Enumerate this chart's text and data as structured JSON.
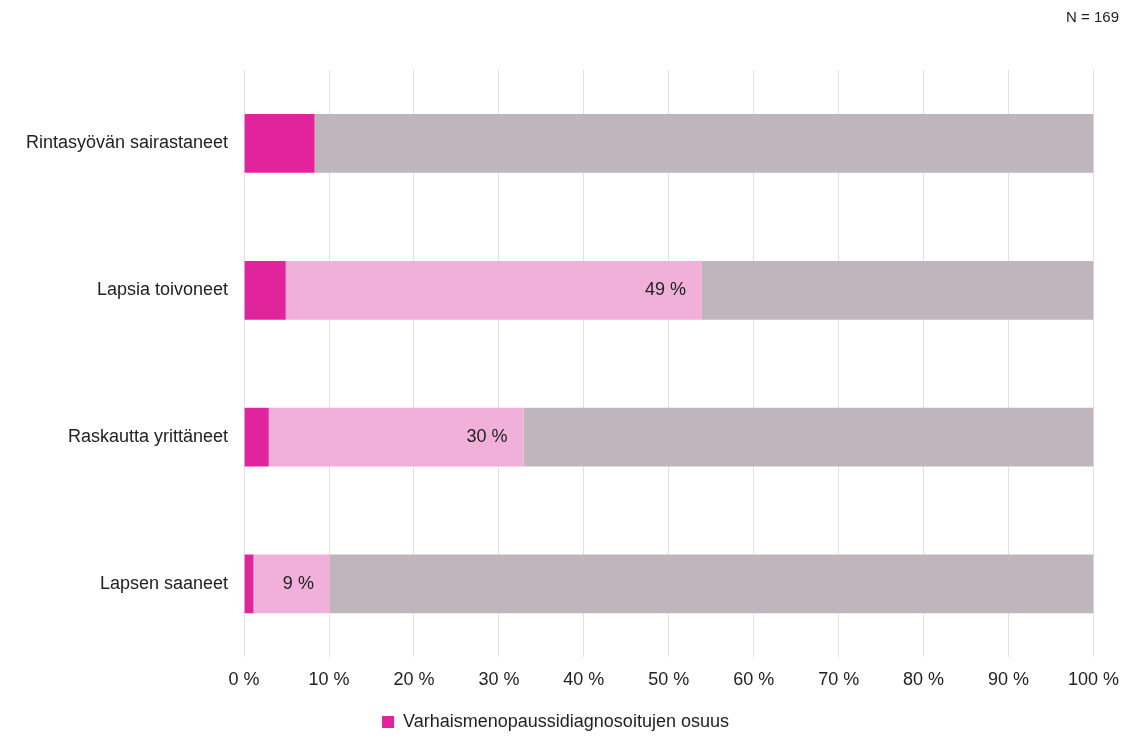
{
  "chart_data": {
    "type": "bar",
    "orientation": "horizontal",
    "stacked": true,
    "categories": [
      "Rintasyövän sairastaneet",
      "Lapsia toivoneet",
      "Raskautta yrittäneet",
      "Lapsen saaneet"
    ],
    "series": [
      {
        "name": "Varhaismenopaussidiagnosoitujen osuus",
        "color": "#e2249c",
        "values": [
          8.3,
          4.9,
          2.9,
          1.1
        ]
      },
      {
        "color": "#f0b0da",
        "values": [
          0,
          49,
          30,
          9
        ],
        "value_labels": [
          null,
          "49 %",
          "30 %",
          "9 %"
        ]
      },
      {
        "color": "#beb6bc",
        "values": [
          91.7,
          46.1,
          67.1,
          89.9
        ]
      }
    ],
    "xlim": [
      0,
      100
    ],
    "xticks": [
      {
        "value": 0,
        "label": "0 %"
      },
      {
        "value": 10,
        "label": "10 %"
      },
      {
        "value": 20,
        "label": "20 %"
      },
      {
        "value": 30,
        "label": "30 %"
      },
      {
        "value": 40,
        "label": "40 %"
      },
      {
        "value": 50,
        "label": "50 %"
      },
      {
        "value": 60,
        "label": "60 %"
      },
      {
        "value": 70,
        "label": "70 %"
      },
      {
        "value": 80,
        "label": "80 %"
      },
      {
        "value": 90,
        "label": "90 %"
      },
      {
        "value": 100,
        "label": "100 %"
      }
    ],
    "grid": "x",
    "legend": "bottom",
    "annotations": [
      "N = 169"
    ]
  }
}
